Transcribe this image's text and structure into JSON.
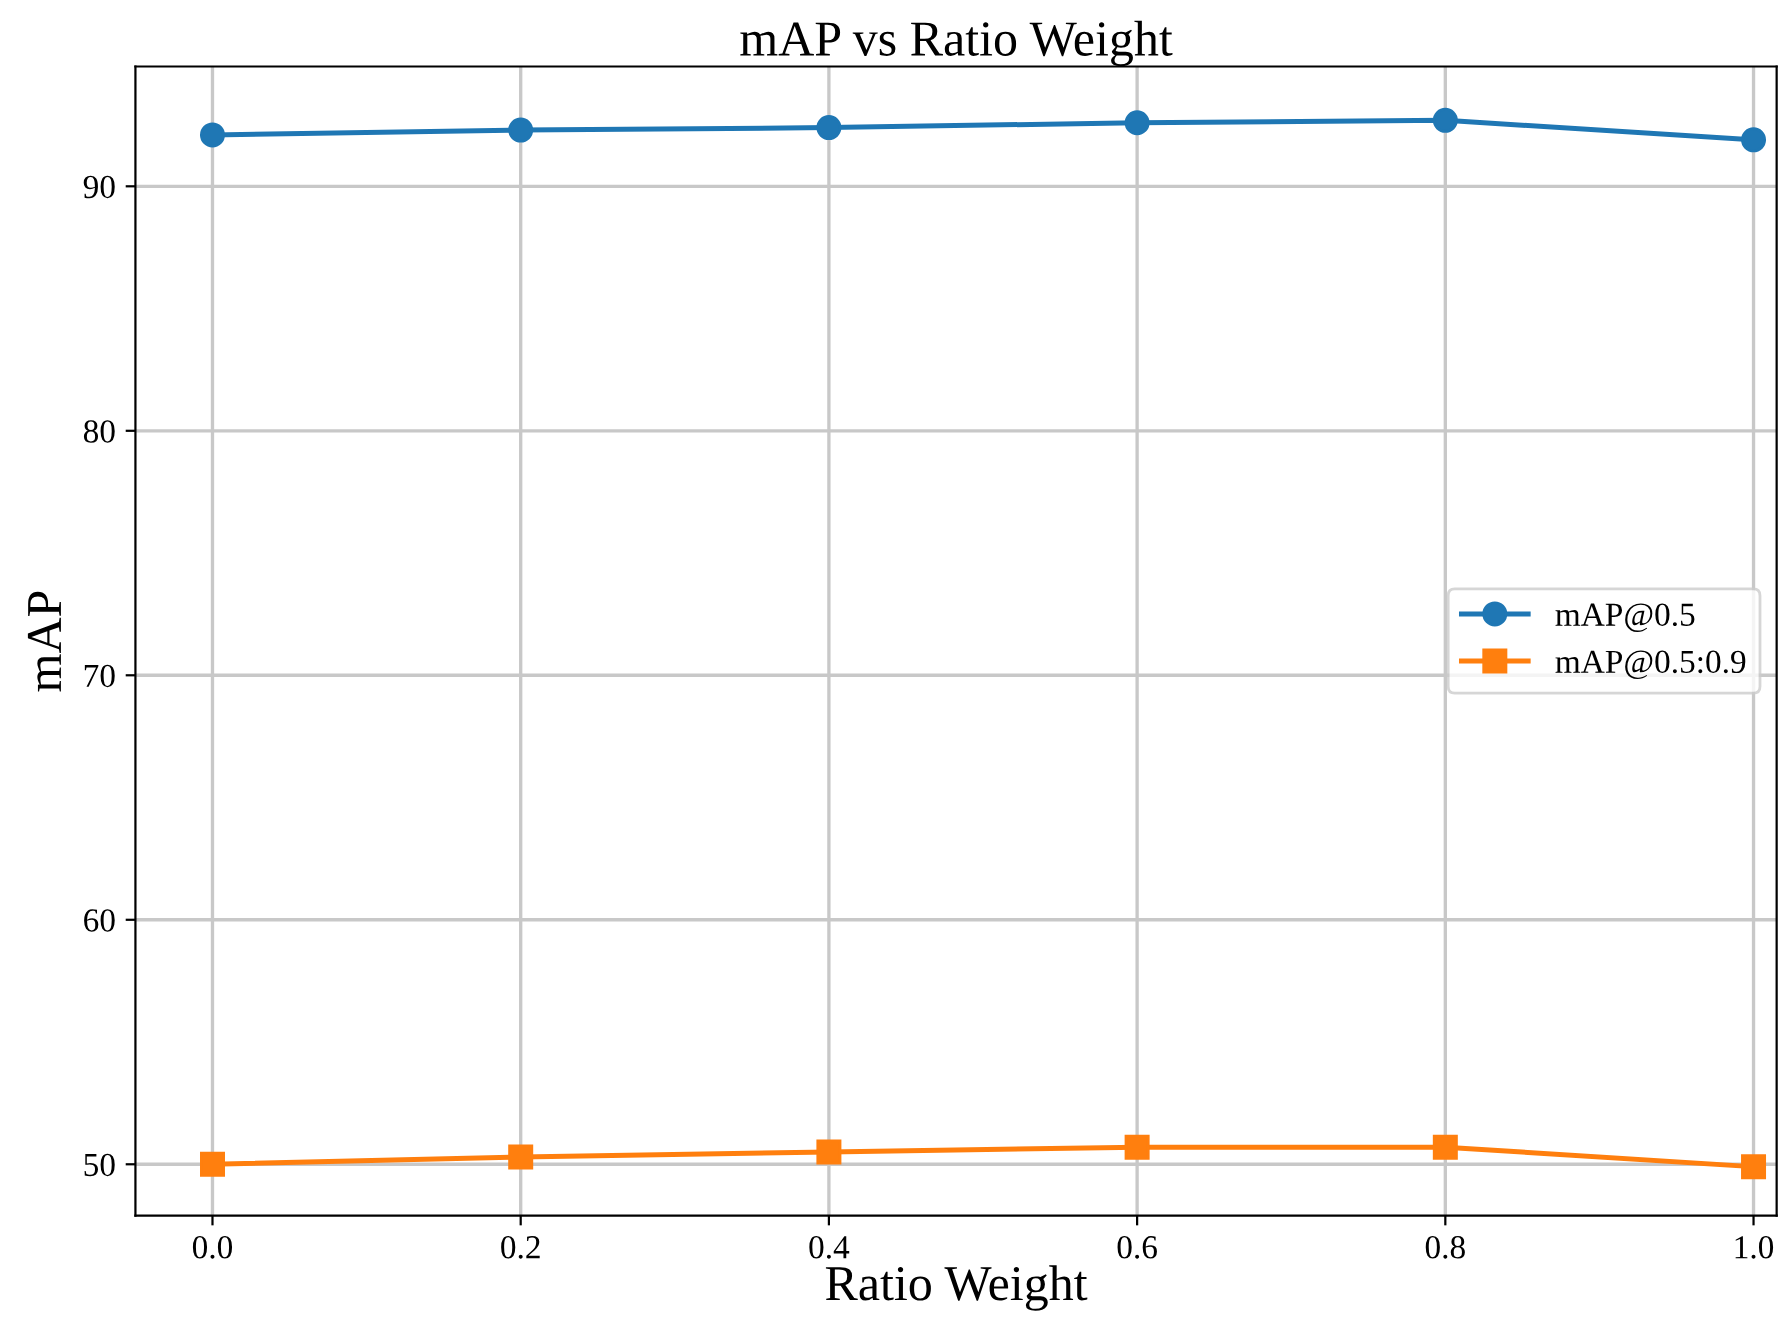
{
  "chart_data": {
    "type": "line",
    "title": "mAP vs Ratio Weight",
    "xlabel": "Ratio Weight",
    "ylabel": "mAP",
    "x": [
      0.0,
      0.2,
      0.4,
      0.6,
      0.8,
      1.0
    ],
    "series": [
      {
        "name": "mAP@0.5",
        "color": "#1f77b4",
        "marker": "circle",
        "values": [
          92.1,
          92.3,
          92.4,
          92.6,
          92.7,
          91.9
        ]
      },
      {
        "name": "mAP@0.5:0.9",
        "color": "#ff7f0e",
        "marker": "square",
        "values": [
          50.0,
          50.3,
          50.5,
          50.7,
          50.7,
          49.9
        ]
      }
    ],
    "xlim": [
      -0.05,
      1.015
    ],
    "ylim": [
      47.9,
      94.9
    ],
    "xticks": [
      {
        "value": 0.0,
        "label": "0.0"
      },
      {
        "value": 0.2,
        "label": "0.2"
      },
      {
        "value": 0.4,
        "label": "0.4"
      },
      {
        "value": 0.6,
        "label": "0.6"
      },
      {
        "value": 0.8,
        "label": "0.8"
      },
      {
        "value": 1.0,
        "label": "1.0"
      }
    ],
    "yticks": [
      50,
      60,
      70,
      80,
      90
    ],
    "grid": true,
    "legend": "right",
    "line_style": "solid"
  }
}
